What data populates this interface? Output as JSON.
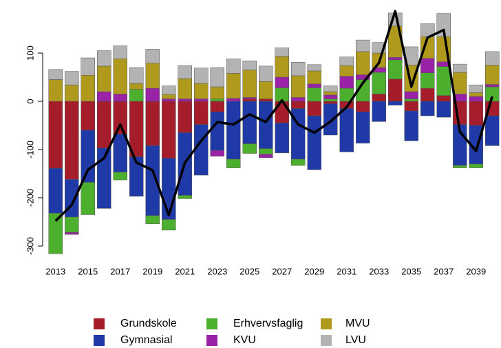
{
  "chart_data": {
    "type": "stacked-bar",
    "x": [
      2013,
      2014,
      2015,
      2016,
      2017,
      2018,
      2019,
      2020,
      2021,
      2022,
      2023,
      2024,
      2025,
      2026,
      2027,
      2028,
      2029,
      2030,
      2031,
      2032,
      2033,
      2034,
      2035,
      2036,
      2037,
      2038,
      2039,
      2040
    ],
    "xlim": [
      2012.5,
      2040.5
    ],
    "xticks": [
      2013,
      2015,
      2017,
      2019,
      2021,
      2023,
      2025,
      2027,
      2029,
      2031,
      2033,
      2035,
      2037,
      2039
    ],
    "ylim": [
      -320,
      190
    ],
    "yticks": [
      -300,
      -200,
      -100,
      0,
      100
    ],
    "series": [
      {
        "name": "Grundskole",
        "color": "#a51c2b",
        "values": [
          -139,
          -162,
          -60,
          -97,
          -68,
          -115,
          -92,
          -118,
          -65,
          -48,
          -22,
          0,
          5,
          5,
          -45,
          -15,
          -30,
          -5,
          -15,
          -22,
          15,
          46,
          -20,
          27,
          12,
          -48,
          -50,
          -30
        ]
      },
      {
        "name": "Gymnasial",
        "color": "#1f3aa6",
        "values": [
          -93,
          -78,
          -108,
          -125,
          -79,
          -82,
          -145,
          -127,
          -130,
          -105,
          -80,
          -120,
          -88,
          -98,
          -62,
          -105,
          -112,
          -65,
          -90,
          -65,
          -42,
          -8,
          -62,
          -30,
          -33,
          -85,
          -80,
          -62
        ]
      },
      {
        "name": "Erhvervsfaglig",
        "color": "#4caf2e",
        "values": [
          -84,
          -32,
          -67,
          0,
          -16,
          25,
          -17,
          -22,
          -7,
          0,
          5,
          -18,
          -20,
          -12,
          28,
          -13,
          28,
          5,
          27,
          45,
          45,
          40,
          5,
          32,
          60,
          -5,
          -8,
          30
        ]
      },
      {
        "name": "KVU",
        "color": "#9a22a6",
        "values": [
          0,
          -4,
          0,
          20,
          15,
          0,
          27,
          5,
          5,
          5,
          -12,
          6,
          3,
          -7,
          22,
          8,
          8,
          8,
          25,
          10,
          10,
          5,
          15,
          30,
          10,
          15,
          10,
          5
        ]
      },
      {
        "name": "MVU",
        "color": "#b09a1e",
        "values": [
          45,
          34,
          54,
          53,
          73,
          12,
          52,
          9,
          42,
          32,
          25,
          52,
          57,
          36,
          43,
          45,
          27,
          7,
          22,
          48,
          30,
          65,
          55,
          45,
          52,
          45,
          8,
          40
        ]
      },
      {
        "name": "LVU",
        "color": "#b3b3b3",
        "values": [
          21,
          28,
          36,
          32,
          27,
          33,
          29,
          18,
          27,
          32,
          40,
          30,
          19,
          32,
          18,
          28,
          13,
          12,
          18,
          24,
          22,
          27,
          38,
          27,
          48,
          17,
          16,
          28
        ]
      }
    ],
    "line": {
      "color": "#000000",
      "values": [
        -248,
        -215,
        -142,
        -118,
        -48,
        -127,
        -143,
        -236,
        -127,
        -82,
        -43,
        -48,
        -27,
        -43,
        2,
        -48,
        -65,
        -42,
        -12,
        38,
        80,
        187,
        30,
        132,
        148,
        -63,
        -103,
        10
      ]
    }
  }
}
